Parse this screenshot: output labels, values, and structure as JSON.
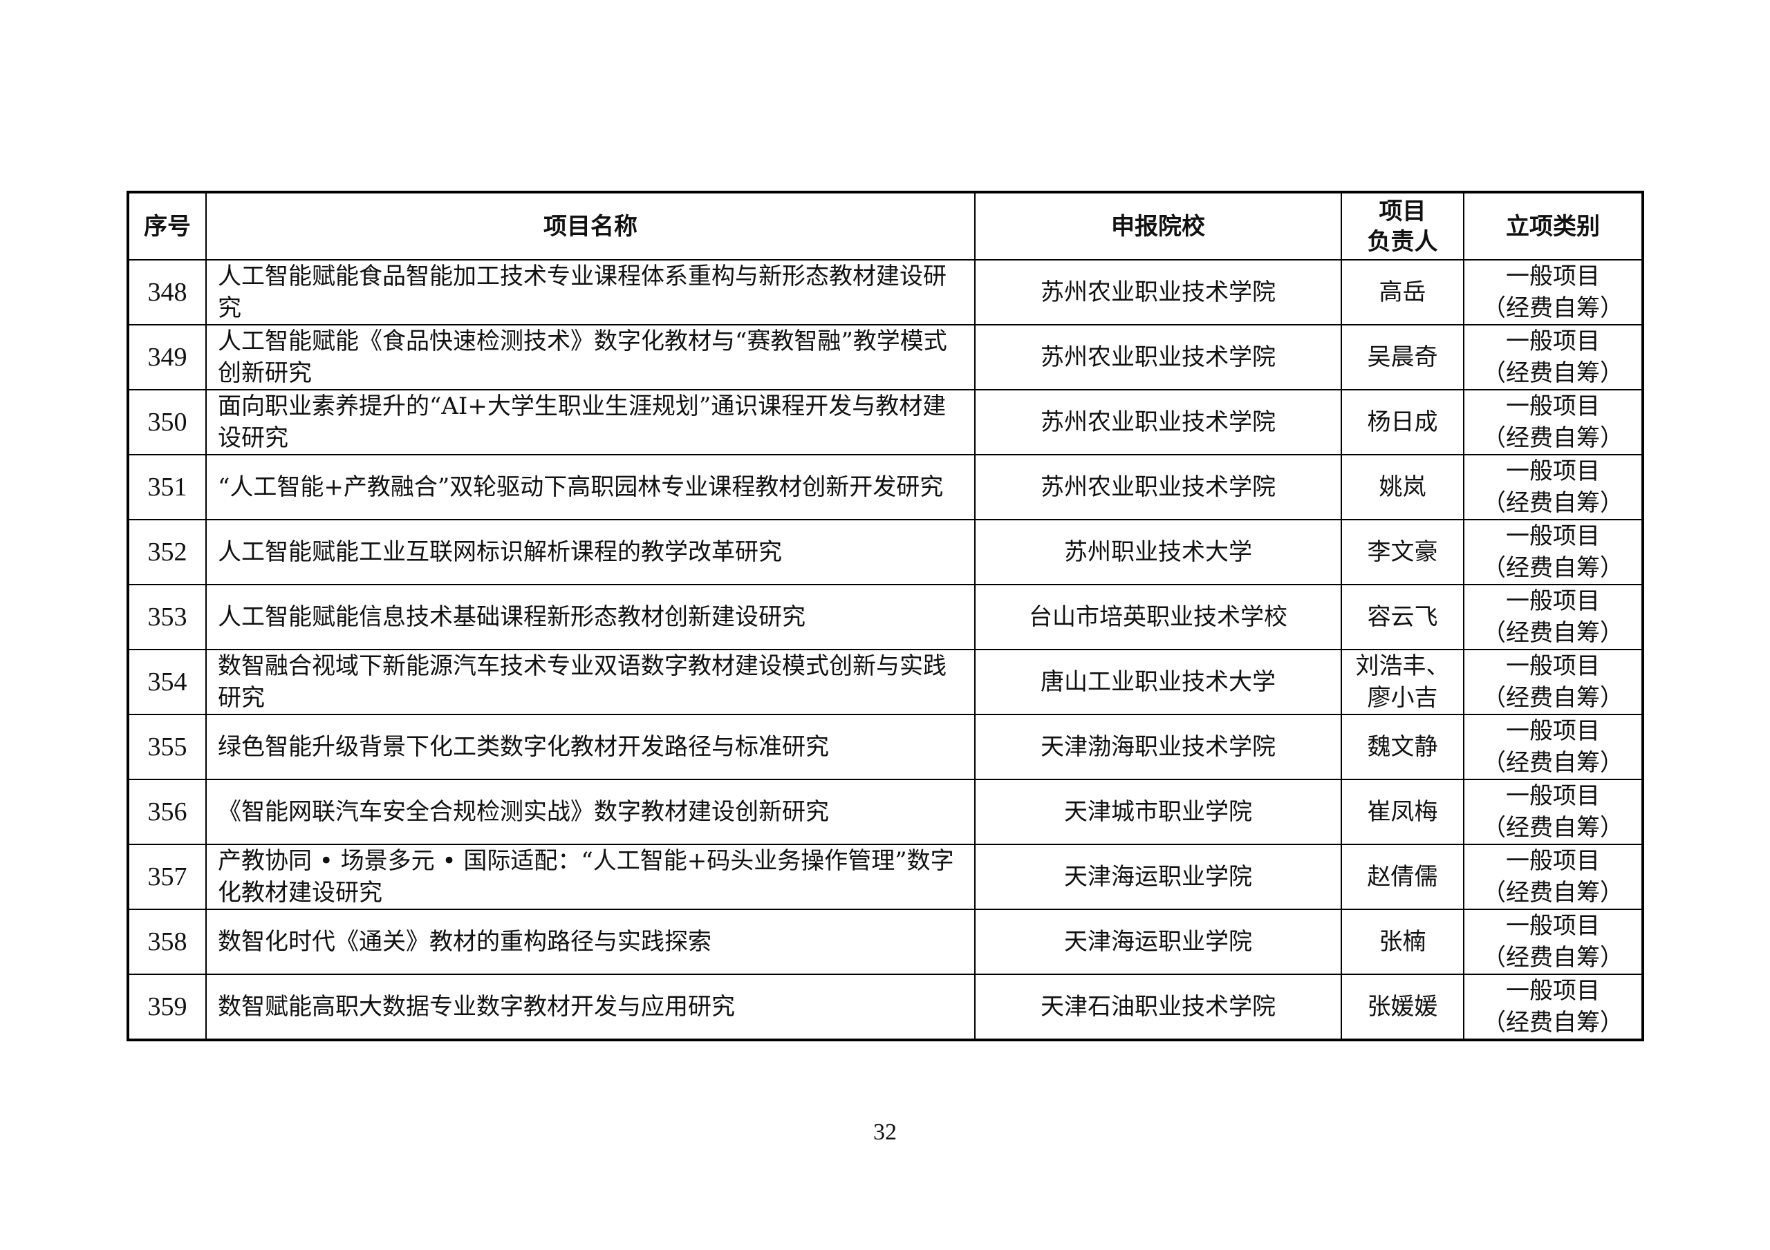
{
  "table": {
    "headers": [
      "序号",
      "项目名称",
      "申报院校",
      "项目\n负责人",
      "立项类别"
    ],
    "rows": [
      {
        "no": "348",
        "name": "人工智能赋能食品智能加工技术专业课程体系重构与新形态教材建设研究",
        "school": "苏州农业职业技术学院",
        "leader": "高岳",
        "category": "一般项目\n（经费自筹）"
      },
      {
        "no": "349",
        "name": "人工智能赋能《食品快速检测技术》数字化教材与“赛教智融”教学模式创新研究",
        "school": "苏州农业职业技术学院",
        "leader": "吴晨奇",
        "category": "一般项目\n（经费自筹）"
      },
      {
        "no": "350",
        "name": "面向职业素养提升的“AI+大学生职业生涯规划”通识课程开发与教材建设研究",
        "school": "苏州农业职业技术学院",
        "leader": "杨日成",
        "category": "一般项目\n（经费自筹）"
      },
      {
        "no": "351",
        "name": "“人工智能+产教融合”双轮驱动下高职园林专业课程教材创新开发研究",
        "school": "苏州农业职业技术学院",
        "leader": "姚岚",
        "category": "一般项目\n（经费自筹）"
      },
      {
        "no": "352",
        "name": "人工智能赋能工业互联网标识解析课程的教学改革研究",
        "school": "苏州职业技术大学",
        "leader": "李文豪",
        "category": "一般项目\n（经费自筹）"
      },
      {
        "no": "353",
        "name": "人工智能赋能信息技术基础课程新形态教材创新建设研究",
        "school": "台山市培英职业技术学校",
        "leader": "容云飞",
        "category": "一般项目\n（经费自筹）"
      },
      {
        "no": "354",
        "name": "数智融合视域下新能源汽车技术专业双语数字教材建设模式创新与实践研究",
        "school": "唐山工业职业技术大学",
        "leader": "刘浩丰、\n廖小吉",
        "category": "一般项目\n（经费自筹）"
      },
      {
        "no": "355",
        "name": "绿色智能升级背景下化工类数字化教材开发路径与标准研究",
        "school": "天津渤海职业技术学院",
        "leader": "魏文静",
        "category": "一般项目\n（经费自筹）"
      },
      {
        "no": "356",
        "name": "《智能网联汽车安全合规检测实战》数字教材建设创新研究",
        "school": "天津城市职业学院",
        "leader": "崔凤梅",
        "category": "一般项目\n（经费自筹）"
      },
      {
        "no": "357",
        "name": "产教协同 • 场景多元 • 国际适配：“人工智能+码头业务操作管理”数字化教材建设研究",
        "school": "天津海运职业学院",
        "leader": "赵倩儒",
        "category": "一般项目\n（经费自筹）"
      },
      {
        "no": "358",
        "name": "数智化时代《通关》教材的重构路径与实践探索",
        "school": "天津海运职业学院",
        "leader": "张楠",
        "category": "一般项目\n（经费自筹）"
      },
      {
        "no": "359",
        "name": "数智赋能高职大数据专业数字教材开发与应用研究",
        "school": "天津石油职业技术学院",
        "leader": "张媛媛",
        "category": "一般项目\n（经费自筹）"
      }
    ]
  },
  "page_number": "32"
}
